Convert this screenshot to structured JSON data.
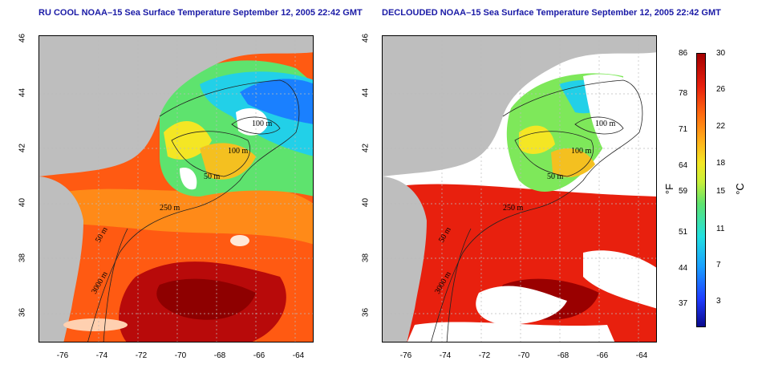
{
  "panels": [
    {
      "title": "RU COOL NOAA–15 Sea Surface Temperature September 12, 2005 22:42 GMT",
      "contour_labels": [
        "100 m",
        "100 m",
        "50 m",
        "250 m",
        "50 m",
        "3000 m"
      ]
    },
    {
      "title": "DECLOUDED NOAA–15 Sea Surface Temperature September 12, 2005 22:42 GMT",
      "contour_labels": [
        "100 m",
        "100 m",
        "50 m",
        "250 m",
        "50 m",
        "3000 m"
      ]
    }
  ],
  "axes": {
    "lat_labels": [
      "46",
      "44",
      "42",
      "40",
      "38",
      "36"
    ],
    "lon_labels": [
      "-76",
      "-74",
      "-72",
      "-70",
      "-68",
      "-66",
      "-64"
    ]
  },
  "colorbar": {
    "f_labels": [
      "86",
      "78",
      "71",
      "64",
      "59",
      "51",
      "44",
      "37"
    ],
    "c_labels": [
      "30",
      "26",
      "22",
      "18",
      "15",
      "11",
      "7",
      "3"
    ],
    "f_unit": "°F",
    "c_unit": "°C"
  },
  "colors": {
    "land": "#bebebe",
    "cloud": "#ffffff",
    "title": "#1a1aa6",
    "warm": "#e8200e",
    "hot": "#a40000",
    "cool": "#22e0e0",
    "mild": "#c8f03a"
  }
}
